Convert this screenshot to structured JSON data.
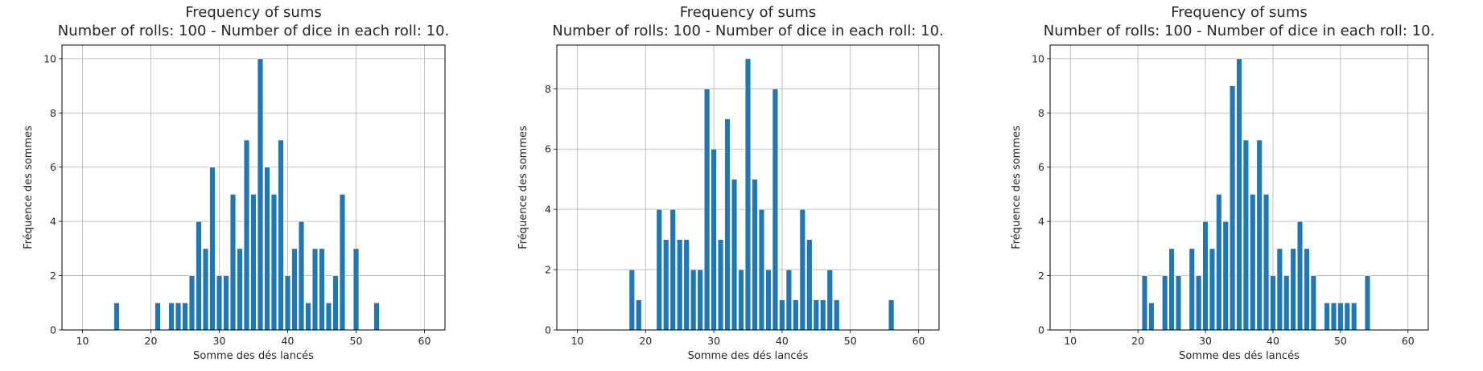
{
  "chart_data": [
    {
      "type": "bar",
      "title": [
        "Frequency of sums",
        "Number of rolls: 100 - Number of dice in each roll: 10."
      ],
      "xlabel": "Somme des dés lancés",
      "ylabel": "Fréquence des sommes",
      "xlim": [
        7,
        63
      ],
      "ylim": [
        0,
        10.5
      ],
      "xticks": [
        10,
        20,
        30,
        40,
        50,
        60
      ],
      "yticks": [
        0,
        2,
        4,
        6,
        8,
        10
      ],
      "grid": true,
      "color": "#1f77b4",
      "x": [
        15,
        21,
        23,
        24,
        25,
        26,
        27,
        28,
        29,
        30,
        31,
        32,
        33,
        34,
        35,
        36,
        37,
        38,
        39,
        40,
        41,
        42,
        43,
        44,
        45,
        46,
        47,
        48,
        50,
        53
      ],
      "values": [
        1,
        1,
        1,
        1,
        1,
        2,
        4,
        3,
        6,
        2,
        2,
        5,
        3,
        7,
        5,
        10,
        6,
        5,
        7,
        2,
        3,
        4,
        1,
        3,
        3,
        1,
        2,
        5,
        3,
        1
      ]
    },
    {
      "type": "bar",
      "title": [
        "Frequency of sums",
        "Number of rolls: 100 - Number of dice in each roll: 10."
      ],
      "xlabel": "Somme des dés lancés",
      "ylabel": "Fréquence des sommes",
      "xlim": [
        7,
        63
      ],
      "ylim": [
        0,
        9.45
      ],
      "xticks": [
        10,
        20,
        30,
        40,
        50,
        60
      ],
      "yticks": [
        0,
        2,
        4,
        6,
        8
      ],
      "grid": true,
      "color": "#1f77b4",
      "x": [
        18,
        19,
        22,
        23,
        24,
        25,
        26,
        27,
        28,
        29,
        30,
        31,
        32,
        33,
        34,
        35,
        36,
        37,
        38,
        39,
        40,
        41,
        42,
        43,
        44,
        45,
        46,
        47,
        48,
        56
      ],
      "values": [
        2,
        1,
        4,
        3,
        4,
        3,
        3,
        2,
        2,
        8,
        6,
        3,
        7,
        5,
        2,
        9,
        5,
        4,
        2,
        8,
        1,
        2,
        1,
        4,
        3,
        1,
        1,
        2,
        1,
        1
      ]
    },
    {
      "type": "bar",
      "title": [
        "Frequency of sums",
        "Number of rolls: 100 - Number of dice in each roll: 10."
      ],
      "xlabel": "Somme des dés lancés",
      "ylabel": "Fréquence des sommes",
      "xlim": [
        7,
        63
      ],
      "ylim": [
        0,
        10.5
      ],
      "xticks": [
        10,
        20,
        30,
        40,
        50,
        60
      ],
      "yticks": [
        0,
        2,
        4,
        6,
        8,
        10
      ],
      "grid": true,
      "color": "#1f77b4",
      "x": [
        21,
        22,
        24,
        25,
        26,
        28,
        29,
        30,
        31,
        32,
        33,
        34,
        35,
        36,
        37,
        38,
        39,
        40,
        41,
        42,
        43,
        44,
        45,
        46,
        48,
        49,
        50,
        51,
        52,
        54
      ],
      "values": [
        2,
        1,
        2,
        3,
        2,
        3,
        2,
        4,
        3,
        5,
        4,
        9,
        10,
        7,
        5,
        7,
        5,
        2,
        3,
        2,
        3,
        4,
        3,
        2,
        1,
        1,
        1,
        1,
        1,
        2
      ]
    }
  ]
}
